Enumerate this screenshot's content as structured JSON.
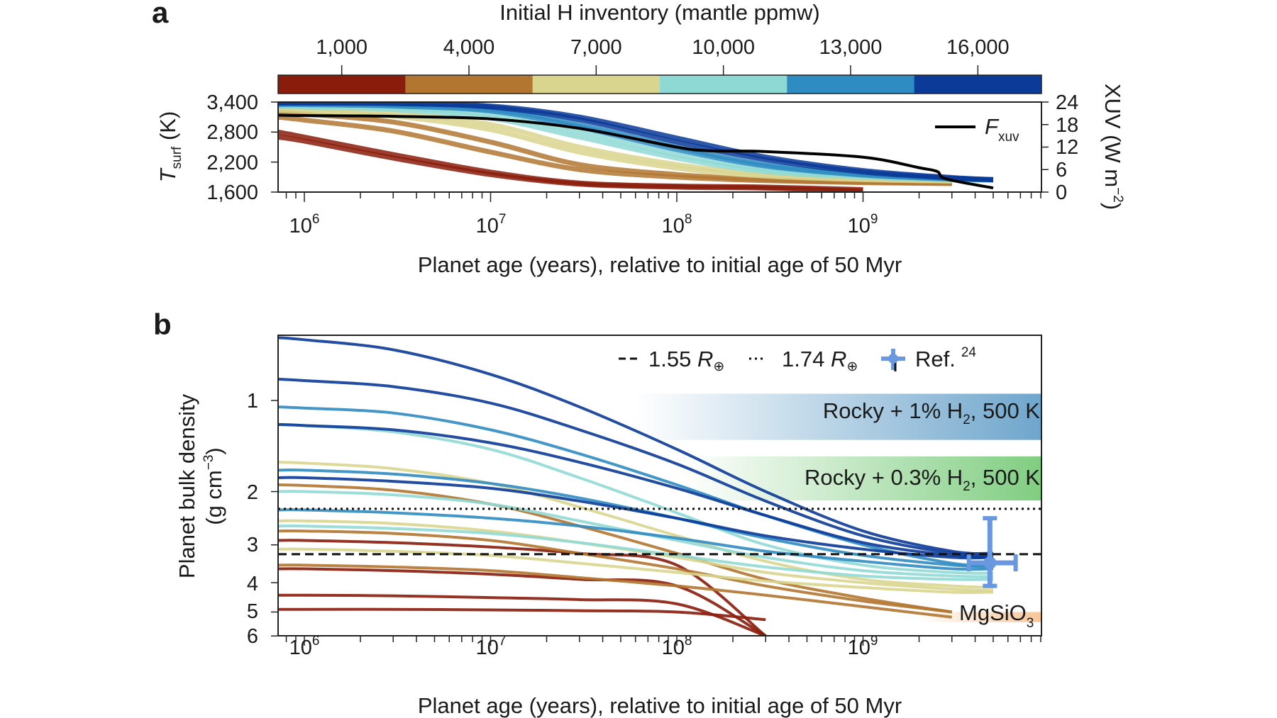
{
  "chart_data": [
    {
      "panel": "a",
      "type": "line",
      "colorbar": {
        "title": "Initial H inventory (mantle ppmw)",
        "tick_labels": [
          "1,000",
          "4,000",
          "7,000",
          "10,000",
          "13,000",
          "16,000"
        ],
        "colors": [
          "#8a1c0b",
          "#b27630",
          "#d9d58e",
          "#8fd9d5",
          "#2f8cc2",
          "#0b3a98"
        ]
      },
      "xlabel": "Planet age (years), relative to initial age of 50 Myr",
      "x_scale": "log",
      "xlim": [
        720000,
        9100000000
      ],
      "x_tick_labels": [
        {
          "base": "10",
          "exp": "6"
        },
        {
          "base": "10",
          "exp": "7"
        },
        {
          "base": "10",
          "exp": "8"
        },
        {
          "base": "10",
          "exp": "9"
        }
      ],
      "ylabel": {
        "main": "T",
        "sub": "surf",
        "unit": " (K)"
      },
      "ylim": [
        1600,
        3400
      ],
      "y_tick_labels": [
        "1,600",
        "2,200",
        "2,800",
        "3,400"
      ],
      "y_ticks": [
        1600,
        2200,
        2800,
        3400
      ],
      "y2label": {
        "main": "XUV (W m",
        "sup": "−2",
        "end": ")"
      },
      "y2lim": [
        0,
        24
      ],
      "y2_tick_labels": [
        "0",
        "6",
        "12",
        "18",
        "24"
      ],
      "y2_ticks": [
        0,
        6,
        12,
        18,
        24
      ],
      "legend": {
        "label_main": "F",
        "label_sub": "xuv",
        "position": "top-right"
      },
      "ages": [
        720000,
        1000000,
        3000000,
        10000000,
        30000000,
        100000000,
        300000000,
        1000000000,
        3000000000,
        5000000000
      ],
      "series": [
        {
          "group": 0,
          "values": [
            2800,
            2700,
            2350,
            2000,
            1780,
            1720,
            1700,
            1650,
            null,
            null
          ]
        },
        {
          "group": 0,
          "values": [
            2700,
            2620,
            2280,
            1950,
            1760,
            1700,
            1680,
            1620,
            null,
            null
          ]
        },
        {
          "group": 1,
          "values": [
            3200,
            3160,
            3000,
            2600,
            2150,
            1950,
            1850,
            1800,
            1780,
            null
          ]
        },
        {
          "group": 1,
          "values": [
            3100,
            3040,
            2820,
            2400,
            2050,
            1900,
            1830,
            1790,
            1770,
            null
          ]
        },
        {
          "group": 2,
          "values": [
            3280,
            3260,
            3180,
            2950,
            2500,
            2150,
            1950,
            1870,
            1830,
            null
          ]
        },
        {
          "group": 2,
          "values": [
            3240,
            3220,
            3120,
            2850,
            2400,
            2080,
            1920,
            1850,
            1820,
            null
          ]
        },
        {
          "group": 3,
          "values": [
            3330,
            3320,
            3280,
            3150,
            2800,
            2350,
            2050,
            1920,
            1860,
            1850
          ]
        },
        {
          "group": 3,
          "values": [
            3310,
            3300,
            3250,
            3080,
            2700,
            2280,
            2010,
            1900,
            1850,
            1840
          ]
        },
        {
          "group": 4,
          "values": [
            3360,
            3360,
            3340,
            3250,
            2950,
            2500,
            2150,
            1950,
            1870,
            1840
          ]
        },
        {
          "group": 4,
          "values": [
            3350,
            3350,
            3320,
            3220,
            2900,
            2450,
            2120,
            1940,
            1860,
            1840
          ]
        },
        {
          "group": 5,
          "values": [
            3380,
            3380,
            3370,
            3300,
            3050,
            2600,
            2250,
            2000,
            1880,
            1850
          ]
        },
        {
          "group": 5,
          "values": [
            3390,
            3390,
            3380,
            3320,
            3100,
            2680,
            2300,
            2030,
            1890,
            1850
          ]
        }
      ],
      "fxuv": {
        "ages": [
          720000,
          1000000,
          3000000,
          10000000,
          30000000,
          100000000,
          150000000,
          300000000,
          1000000000,
          2000000000,
          2500000000,
          2800000000,
          5000000000
        ],
        "values": [
          20.5,
          20.4,
          20.2,
          19.5,
          17.0,
          12.0,
          11.0,
          10.8,
          9.3,
          6.5,
          5.5,
          3.5,
          1.1
        ],
        "color": "#000000"
      }
    },
    {
      "panel": "b",
      "type": "line",
      "xlabel": "Planet age (years), relative to initial age of 50 Myr",
      "x_scale": "log",
      "xlim": [
        720000,
        9100000000
      ],
      "x_tick_labels": [
        {
          "base": "10",
          "exp": "6"
        },
        {
          "base": "10",
          "exp": "7"
        },
        {
          "base": "10",
          "exp": "8"
        },
        {
          "base": "10",
          "exp": "9"
        }
      ],
      "ylabel": {
        "line1": "Planet bulk density",
        "line2_main": "(g cm",
        "line2_sup": "−3",
        "line2_end": ")"
      },
      "y_scale": "log",
      "y_inverted": true,
      "ylim": [
        0.61,
        6
      ],
      "y_tick_labels": [
        "1",
        "2",
        "3",
        "4",
        "5",
        "6"
      ],
      "y_ticks": [
        1,
        2,
        3,
        4,
        5,
        6
      ],
      "ages": [
        720000,
        1000000,
        3000000,
        10000000,
        30000000,
        100000000,
        300000000,
        1000000000,
        3000000000,
        5000000000
      ],
      "series": [
        {
          "group": 0,
          "values": [
            2.9,
            2.9,
            2.95,
            3.05,
            3.2,
            3.5,
            6,
            null,
            null,
            null
          ]
        },
        {
          "group": 0,
          "values": [
            3.6,
            3.6,
            3.65,
            3.75,
            3.9,
            4.1,
            6,
            null,
            null,
            null
          ]
        },
        {
          "group": 0,
          "values": [
            4.4,
            4.4,
            4.42,
            4.48,
            4.55,
            4.7,
            6,
            null,
            null,
            null
          ]
        },
        {
          "group": 0,
          "values": [
            4.9,
            4.9,
            4.9,
            4.92,
            4.95,
            5.0,
            5.3,
            null,
            null,
            null
          ]
        },
        {
          "group": 1,
          "values": [
            1.9,
            1.91,
            1.98,
            2.2,
            2.6,
            3.2,
            3.9,
            4.5,
            5.0,
            null
          ]
        },
        {
          "group": 1,
          "values": [
            2.7,
            2.7,
            2.75,
            2.9,
            3.2,
            3.6,
            4.1,
            4.6,
            5.0,
            null
          ]
        },
        {
          "group": 1,
          "values": [
            3.5,
            3.5,
            3.55,
            3.65,
            3.85,
            4.1,
            4.4,
            4.8,
            5.2,
            null
          ]
        },
        {
          "group": 2,
          "values": [
            1.6,
            1.61,
            1.68,
            1.88,
            2.25,
            2.8,
            3.4,
            3.9,
            4.1,
            4.15
          ]
        },
        {
          "group": 2,
          "values": [
            2.5,
            2.5,
            2.55,
            2.7,
            2.95,
            3.3,
            3.7,
            4.0,
            4.2,
            4.25
          ]
        },
        {
          "group": 2,
          "values": [
            3.1,
            3.1,
            3.15,
            3.25,
            3.45,
            3.7,
            3.95,
            4.15,
            4.3,
            4.3
          ]
        },
        {
          "group": 3,
          "values": [
            1.2,
            1.21,
            1.27,
            1.45,
            1.8,
            2.35,
            3.0,
            3.5,
            3.7,
            3.72
          ]
        },
        {
          "group": 3,
          "values": [
            2.0,
            2.0,
            2.05,
            2.2,
            2.5,
            2.9,
            3.3,
            3.65,
            3.8,
            3.82
          ]
        },
        {
          "group": 3,
          "values": [
            2.6,
            2.6,
            2.65,
            2.75,
            2.95,
            3.25,
            3.55,
            3.8,
            3.9,
            3.9
          ]
        },
        {
          "group": 4,
          "values": [
            1.05,
            1.06,
            1.1,
            1.25,
            1.5,
            1.9,
            2.4,
            3.0,
            3.45,
            3.5
          ]
        },
        {
          "group": 4,
          "values": [
            1.7,
            1.7,
            1.75,
            1.88,
            2.1,
            2.45,
            2.85,
            3.25,
            3.5,
            3.55
          ]
        },
        {
          "group": 4,
          "values": [
            2.3,
            2.3,
            2.35,
            2.45,
            2.6,
            2.85,
            3.15,
            3.4,
            3.6,
            3.6
          ]
        },
        {
          "group": 5,
          "values": [
            0.62,
            0.63,
            0.68,
            0.82,
            1.05,
            1.45,
            2.0,
            2.7,
            3.15,
            3.2
          ]
        },
        {
          "group": 5,
          "values": [
            0.85,
            0.86,
            0.9,
            1.02,
            1.25,
            1.62,
            2.15,
            2.8,
            3.2,
            3.25
          ]
        },
        {
          "group": 5,
          "values": [
            1.2,
            1.21,
            1.25,
            1.38,
            1.6,
            1.95,
            2.4,
            2.95,
            3.25,
            3.3
          ]
        },
        {
          "group": 5,
          "values": [
            1.8,
            1.8,
            1.85,
            1.95,
            2.15,
            2.45,
            2.8,
            3.1,
            3.3,
            3.3
          ]
        }
      ],
      "reference_lines": [
        {
          "label_num": "1.55 ",
          "label_sym": "R",
          "label_sub": "⊕",
          "style": "dashed",
          "density": 3.22
        },
        {
          "label_num": "1.74 ",
          "label_sym": "R",
          "label_sub": "⊕",
          "style": "dotted",
          "density": 2.28
        }
      ],
      "bands": [
        {
          "label_main": "Rocky + 1% H",
          "label_sub": "2",
          "label_end": ", 500 K",
          "density_range": [
            0.95,
            1.35
          ],
          "age_start": 60000000,
          "color": "#5f9cc6"
        },
        {
          "label_main": "Rocky + 0.3% H",
          "label_sub": "2",
          "label_end": ", 500 K",
          "density_range": [
            1.53,
            2.14
          ],
          "age_start": 110000000,
          "color": "#72c873"
        },
        {
          "label_main": "MgSiO",
          "label_sub": "3",
          "density_range": [
            5.0,
            5.4
          ],
          "age_start": 2000000000,
          "color": "#f6b77e"
        }
      ],
      "reference_point": {
        "label": "Ref.",
        "sup": "24",
        "age": 4800000000,
        "age_range": [
          3700000000,
          6600000000
        ],
        "density": 3.44,
        "density_range": [
          2.45,
          4.1
        ],
        "color": "#6a98e0"
      }
    }
  ]
}
